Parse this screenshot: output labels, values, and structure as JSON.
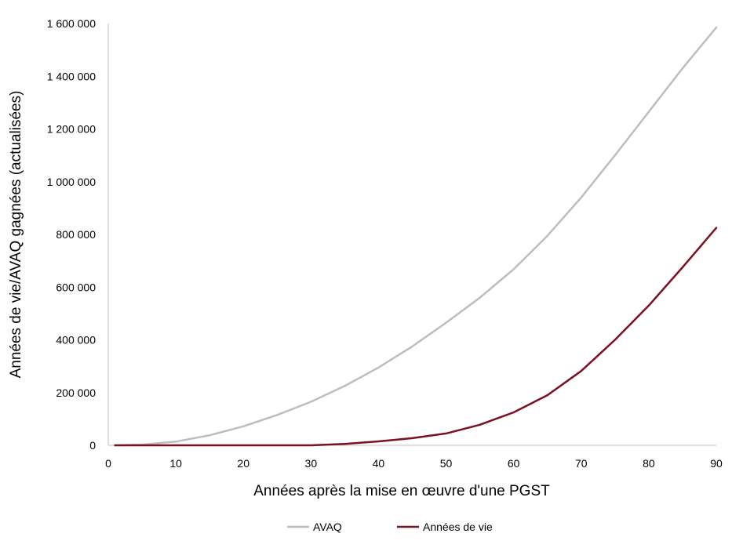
{
  "chart_data": {
    "type": "line",
    "title": "",
    "xlabel": "Années après la mise en œuvre d'une PGST",
    "ylabel": "Années de vie/AVAQ gagnées (actualisées)",
    "xlim": [
      0,
      90
    ],
    "ylim": [
      0,
      1600000
    ],
    "x_ticks": [
      0,
      10,
      20,
      30,
      40,
      50,
      60,
      70,
      80,
      90
    ],
    "x_tick_labels": [
      "0",
      "10",
      "20",
      "30",
      "40",
      "50",
      "60",
      "70",
      "80",
      "90"
    ],
    "y_ticks": [
      0,
      200000,
      400000,
      600000,
      800000,
      1000000,
      1200000,
      1400000,
      1600000
    ],
    "y_tick_labels": [
      "0",
      "200 000",
      "400 000",
      "600 000",
      "800 000",
      "1 000 000",
      "1 200 000",
      "1 400 000",
      "1 600 000"
    ],
    "grid": false,
    "legend_position": "bottom-center",
    "series": [
      {
        "name": "AVAQ",
        "color": "#bdbdbd",
        "x": [
          1,
          5,
          10,
          15,
          20,
          25,
          30,
          35,
          40,
          45,
          50,
          55,
          60,
          65,
          70,
          75,
          80,
          85,
          90
        ],
        "y": [
          0,
          2000,
          14000,
          38000,
          72000,
          115000,
          165000,
          225000,
          295000,
          375000,
          465000,
          560000,
          668000,
          795000,
          940000,
          1100000,
          1265000,
          1430000,
          1585000
        ]
      },
      {
        "name": "Années de vie",
        "color": "#7a1020",
        "x": [
          1,
          5,
          10,
          15,
          20,
          25,
          30,
          35,
          40,
          45,
          50,
          55,
          60,
          65,
          70,
          75,
          80,
          85,
          90
        ],
        "y": [
          0,
          0,
          0,
          0,
          0,
          0,
          0,
          5000,
          15000,
          27000,
          45000,
          78000,
          125000,
          190000,
          282000,
          400000,
          530000,
          675000,
          825000
        ]
      }
    ]
  }
}
